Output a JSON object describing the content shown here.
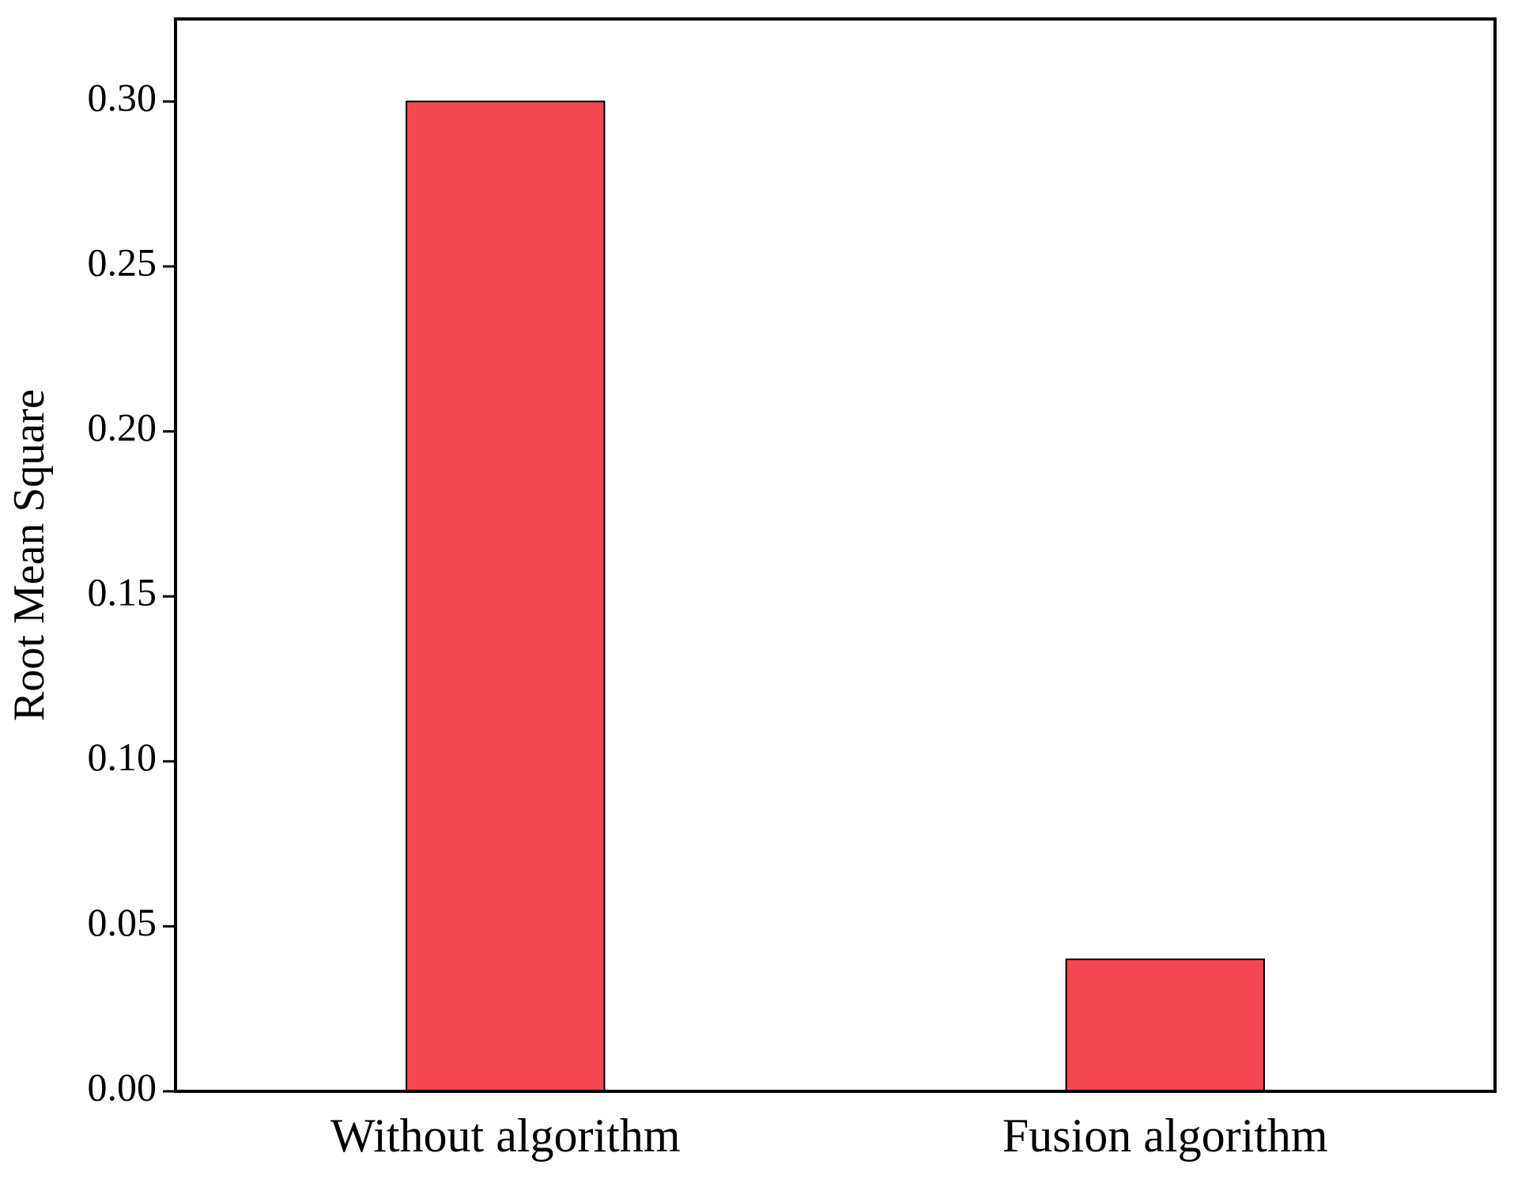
{
  "chart_data": {
    "type": "bar",
    "y_label": "Root Mean Square",
    "categories": [
      "Without algorithm",
      "Fusion algorithm"
    ],
    "values": [
      0.3,
      0.04
    ],
    "color": "#f64852",
    "ylim": [
      0,
      0.325
    ],
    "yticks": [
      {
        "value": 0,
        "label": "0.00"
      },
      {
        "value": 0.05,
        "label": "0.05"
      },
      {
        "value": 0.1,
        "label": "0.10"
      },
      {
        "value": 0.15,
        "label": "0.15"
      },
      {
        "value": 0.2,
        "label": "0.20"
      },
      {
        "value": 0.25,
        "label": "0.25"
      },
      {
        "value": 0.3,
        "label": "0.30"
      }
    ],
    "grid": false
  }
}
